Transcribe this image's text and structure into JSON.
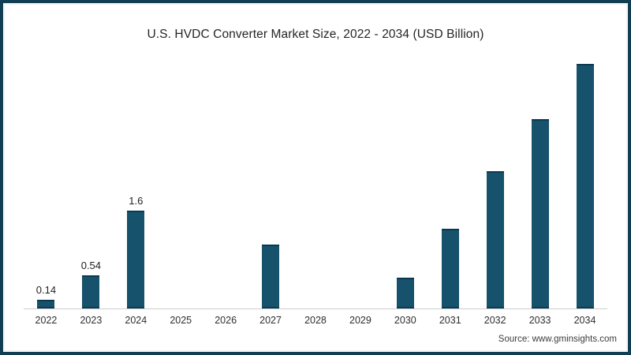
{
  "source": "Source: www.gminsights.com",
  "colors": {
    "bar": "#16526b",
    "bar_edge": "#0c3950",
    "frame_border": "#113e53",
    "axis_line": "#cccccc",
    "title_text": "#252525"
  },
  "chart_data": {
    "type": "bar",
    "title": "U.S. HVDC Converter Market Size, 2022 - 2034 (USD Billion)",
    "xlabel": "",
    "ylabel": "",
    "categories": [
      "2022",
      "2023",
      "2024",
      "2025",
      "2026",
      "2027",
      "2028",
      "2029",
      "2030",
      "2031",
      "2032",
      "2033",
      "2034"
    ],
    "values": [
      0.14,
      0.54,
      1.6,
      null,
      null,
      1.05,
      null,
      null,
      0.5,
      1.3,
      2.25,
      3.1,
      4.0
    ],
    "data_labels": [
      "0.14",
      "0.54",
      "1.6",
      "",
      "",
      "",
      "",
      "",
      "",
      "",
      "",
      "",
      ""
    ],
    "ylim": [
      0,
      4.3
    ],
    "grid": false,
    "legend": "none",
    "y_axis_shown": false
  }
}
